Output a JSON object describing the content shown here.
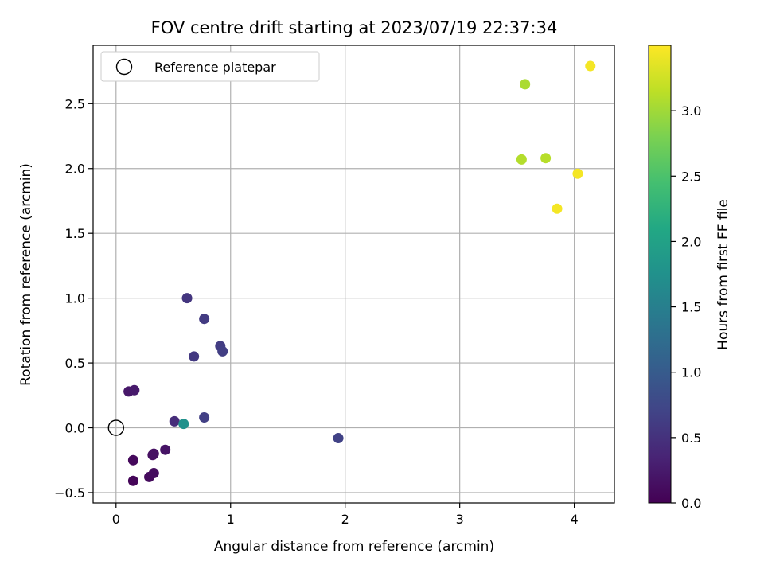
{
  "chart_data": {
    "type": "scatter",
    "title": "FOV centre drift starting at 2023/07/19 22:37:34",
    "xlabel": "Angular distance from reference (arcmin)",
    "ylabel": "Rotation from reference (arcmin)",
    "xlim": [
      -0.2,
      4.35
    ],
    "ylim": [
      -0.58,
      2.95
    ],
    "xticks": [
      "0",
      "1",
      "2",
      "3",
      "4"
    ],
    "xtick_values": [
      0,
      1,
      2,
      3,
      4
    ],
    "yticks": [
      "−0.5",
      "0.0",
      "0.5",
      "1.0",
      "1.5",
      "2.0",
      "2.5"
    ],
    "ytick_values": [
      -0.5,
      0.0,
      0.5,
      1.0,
      1.5,
      2.0,
      2.5
    ],
    "grid": true,
    "legend": {
      "placement": "top-left",
      "entries": [
        "Reference platepar"
      ]
    },
    "reference_point": {
      "x": 0.0,
      "y": 0.0
    },
    "colorbar": {
      "label": "Hours from first FF file",
      "colormap": "viridis",
      "range": [
        0.0,
        3.5
      ],
      "ticks": [
        "0.0",
        "0.5",
        "1.0",
        "1.5",
        "2.0",
        "2.5",
        "3.0"
      ],
      "tick_values": [
        0.0,
        0.5,
        1.0,
        1.5,
        2.0,
        2.5,
        3.0
      ]
    },
    "points": [
      {
        "x": 0.15,
        "y": -0.41,
        "hours": 0.05
      },
      {
        "x": 0.15,
        "y": -0.25,
        "hours": 0.08
      },
      {
        "x": 0.29,
        "y": -0.38,
        "hours": 0.1
      },
      {
        "x": 0.33,
        "y": -0.35,
        "hours": 0.12
      },
      {
        "x": 0.32,
        "y": -0.21,
        "hours": 0.14
      },
      {
        "x": 0.33,
        "y": -0.2,
        "hours": 0.16
      },
      {
        "x": 0.43,
        "y": -0.17,
        "hours": 0.18
      },
      {
        "x": 0.11,
        "y": 0.28,
        "hours": 0.22
      },
      {
        "x": 0.16,
        "y": 0.29,
        "hours": 0.25
      },
      {
        "x": 0.51,
        "y": 0.05,
        "hours": 0.45
      },
      {
        "x": 0.62,
        "y": 1.0,
        "hours": 0.55
      },
      {
        "x": 0.68,
        "y": 0.55,
        "hours": 0.58
      },
      {
        "x": 0.77,
        "y": 0.84,
        "hours": 0.6
      },
      {
        "x": 0.91,
        "y": 0.63,
        "hours": 0.62
      },
      {
        "x": 0.93,
        "y": 0.59,
        "hours": 0.64
      },
      {
        "x": 0.77,
        "y": 0.08,
        "hours": 0.66
      },
      {
        "x": 1.94,
        "y": -0.08,
        "hours": 0.68
      },
      {
        "x": 0.59,
        "y": 0.03,
        "hours": 1.75
      },
      {
        "x": 3.57,
        "y": 2.65,
        "hours": 3.05
      },
      {
        "x": 3.54,
        "y": 2.07,
        "hours": 3.1
      },
      {
        "x": 3.75,
        "y": 2.08,
        "hours": 3.12
      },
      {
        "x": 4.14,
        "y": 2.79,
        "hours": 3.45
      },
      {
        "x": 4.03,
        "y": 1.96,
        "hours": 3.45
      },
      {
        "x": 3.85,
        "y": 1.69,
        "hours": 3.45
      }
    ]
  }
}
